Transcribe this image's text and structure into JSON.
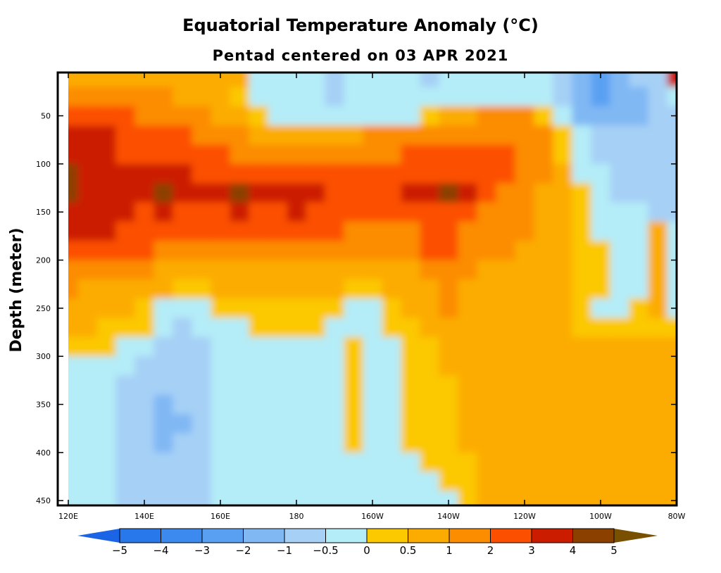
{
  "chart_data": {
    "type": "heatmap",
    "title": "Equatorial Temperature Anomaly (°C)",
    "subtitle": "Pentad centered on 03 APR 2021",
    "xlabel": "",
    "ylabel": "Depth (meter)",
    "x_ticks": [
      {
        "value": 120,
        "label": "120E"
      },
      {
        "value": 140,
        "label": "140E"
      },
      {
        "value": 160,
        "label": "160E"
      },
      {
        "value": 180,
        "label": "180"
      },
      {
        "value": 200,
        "label": "160W"
      },
      {
        "value": 220,
        "label": "140W"
      },
      {
        "value": 240,
        "label": "120W"
      },
      {
        "value": 260,
        "label": "100W"
      },
      {
        "value": 280,
        "label": "80W"
      }
    ],
    "y_ticks": [
      {
        "value": 50,
        "label": "50"
      },
      {
        "value": 100,
        "label": "100"
      },
      {
        "value": 150,
        "label": "150"
      },
      {
        "value": 200,
        "label": "200"
      },
      {
        "value": 250,
        "label": "250"
      },
      {
        "value": 300,
        "label": "300"
      },
      {
        "value": 350,
        "label": "350"
      },
      {
        "value": 400,
        "label": "400"
      },
      {
        "value": 450,
        "label": "450"
      }
    ],
    "xlim": [
      117,
      280
    ],
    "ylim": [
      5,
      455
    ],
    "colorbar": {
      "levels": [
        -5,
        -4,
        -3,
        -2,
        -1,
        -0.5,
        0,
        0.5,
        1,
        2,
        3,
        4,
        5
      ],
      "labels": [
        "−5",
        "−4",
        "−3",
        "−2",
        "−1",
        "−0.5",
        "0",
        "0.5",
        "1",
        "2",
        "3",
        "4",
        "5"
      ],
      "colors": [
        "#1c64e6",
        "#2878ec",
        "#3c8af0",
        "#5aa0f2",
        "#80b8f4",
        "#a6d0f6",
        "#b4ecf8",
        "#fcc800",
        "#fcac00",
        "#fc8c00",
        "#fc5000",
        "#cc1c00",
        "#8c4000",
        "#785000"
      ]
    },
    "anomaly_grid": {
      "depths": [
        10,
        30,
        50,
        70,
        90,
        110,
        130,
        150,
        170,
        190,
        210,
        230,
        250,
        270,
        290,
        310,
        330,
        350,
        370,
        390,
        410,
        430,
        450
      ],
      "longitudes": [
        120,
        125,
        130,
        135,
        140,
        145,
        150,
        155,
        160,
        165,
        170,
        175,
        180,
        185,
        190,
        195,
        200,
        205,
        210,
        215,
        220,
        225,
        230,
        235,
        240,
        245,
        250,
        255,
        260,
        265,
        270,
        275,
        280
      ],
      "rows": [
        [
          0.6,
          0.8,
          0.9,
          0.9,
          0.6,
          0.9,
          0.9,
          0.7,
          0.6,
          0.6,
          -0.2,
          -0.2,
          -0.2,
          -0.2,
          -0.6,
          -0.2,
          -0.2,
          -0.2,
          -0.3,
          -0.6,
          -0.3,
          -0.2,
          -0.3,
          -0.2,
          -0.2,
          -0.4,
          -0.8,
          -2.0,
          -2.5,
          -1.5,
          -1.0,
          -0.8,
          3.0
        ],
        [
          1.5,
          1.6,
          1.6,
          1.5,
          1.6,
          1.2,
          0.9,
          0.6,
          0.6,
          0.4,
          -0.1,
          -0.3,
          -0.3,
          -0.3,
          -0.8,
          -0.4,
          -0.3,
          -0.3,
          -0.3,
          -0.4,
          -0.4,
          -0.3,
          -0.2,
          -0.2,
          -0.2,
          -0.5,
          -1.0,
          -1.8,
          -2.2,
          -1.5,
          -1.2,
          -1.0,
          -0.5
        ],
        [
          2.5,
          2.5,
          2.4,
          2.0,
          1.8,
          1.6,
          1.3,
          1.0,
          0.8,
          0.6,
          0.3,
          -0.1,
          -0.2,
          -0.2,
          -0.3,
          -0.3,
          -0.2,
          -0.2,
          -0.1,
          0.2,
          0.5,
          0.7,
          1.0,
          1.0,
          1.0,
          0.2,
          -0.4,
          -1.2,
          -1.6,
          -1.2,
          -1.2,
          -1.0,
          -0.8
        ],
        [
          3.2,
          3.4,
          3.3,
          2.8,
          2.5,
          2.3,
          2.0,
          1.7,
          1.4,
          1.2,
          0.9,
          0.6,
          0.6,
          0.7,
          0.8,
          0.9,
          1.0,
          1.1,
          1.3,
          1.5,
          1.6,
          1.8,
          1.9,
          1.9,
          1.7,
          1.0,
          0.2,
          -0.4,
          -1.0,
          -0.9,
          -0.9,
          -0.8,
          -0.7
        ],
        [
          3.5,
          3.2,
          3.0,
          2.8,
          2.6,
          2.5,
          2.4,
          2.2,
          2.0,
          1.8,
          1.6,
          1.5,
          1.5,
          1.5,
          1.6,
          1.7,
          1.8,
          1.9,
          2.1,
          2.3,
          2.5,
          2.6,
          2.7,
          2.4,
          1.8,
          1.2,
          0.4,
          -0.2,
          -0.6,
          -0.7,
          -0.8,
          -0.8,
          -0.8
        ],
        [
          4.2,
          3.0,
          3.0,
          3.0,
          3.6,
          3.4,
          3.0,
          2.8,
          2.7,
          2.6,
          2.4,
          2.3,
          2.2,
          2.2,
          2.3,
          2.3,
          2.3,
          2.4,
          2.5,
          2.8,
          2.9,
          2.9,
          2.6,
          2.0,
          1.5,
          1.0,
          0.5,
          -0.1,
          -0.5,
          -0.6,
          -0.7,
          -0.8,
          -0.8
        ],
        [
          4.0,
          3.2,
          3.3,
          3.5,
          3.8,
          4.2,
          3.8,
          3.4,
          3.6,
          4.0,
          3.4,
          3.0,
          3.8,
          3.0,
          2.8,
          2.6,
          2.6,
          2.8,
          3.1,
          3.6,
          4.2,
          3.4,
          2.4,
          1.8,
          1.4,
          0.9,
          0.5,
          0.1,
          -0.4,
          -0.6,
          -0.6,
          -0.7,
          -0.7
        ],
        [
          3.4,
          3.3,
          3.2,
          3.0,
          2.9,
          3.0,
          2.8,
          2.7,
          2.9,
          3.0,
          2.8,
          2.8,
          3.0,
          2.7,
          2.5,
          2.3,
          2.2,
          2.2,
          2.5,
          2.6,
          2.8,
          2.4,
          1.8,
          1.4,
          1.1,
          0.8,
          0.5,
          0.2,
          -0.3,
          -0.5,
          -0.5,
          -0.6,
          -0.6
        ],
        [
          3.0,
          3.0,
          3.0,
          2.6,
          2.4,
          2.3,
          2.2,
          2.2,
          2.3,
          2.4,
          2.4,
          2.3,
          2.4,
          2.2,
          2.0,
          1.8,
          1.6,
          1.6,
          1.8,
          2.1,
          2.2,
          1.9,
          1.6,
          1.3,
          1.0,
          0.8,
          0.6,
          0.3,
          -0.2,
          -0.4,
          -0.4,
          0.6,
          -0.4
        ],
        [
          2.3,
          2.1,
          2.3,
          2.3,
          2.0,
          1.6,
          1.8,
          1.5,
          1.4,
          1.4,
          1.4,
          1.4,
          1.2,
          1.1,
          1.1,
          1.2,
          1.1,
          1.3,
          1.5,
          2.0,
          2.1,
          1.4,
          1.2,
          1.0,
          0.9,
          0.7,
          0.6,
          0.4,
          0.0,
          -0.3,
          -0.3,
          0.7,
          -0.3
        ],
        [
          1.6,
          1.4,
          1.3,
          1.3,
          1.2,
          0.9,
          0.8,
          0.8,
          0.8,
          0.8,
          0.9,
          0.8,
          0.9,
          0.8,
          0.7,
          0.6,
          0.8,
          0.7,
          0.7,
          1.1,
          1.4,
          1.0,
          0.8,
          0.7,
          0.7,
          0.6,
          0.5,
          0.4,
          0.1,
          -0.2,
          -0.2,
          0.8,
          -0.2
        ],
        [
          1.0,
          0.9,
          0.8,
          0.8,
          0.6,
          0.5,
          0.4,
          0.4,
          0.6,
          0.6,
          0.7,
          0.6,
          0.6,
          0.5,
          0.5,
          0.3,
          0.2,
          0.5,
          0.6,
          0.9,
          1.2,
          0.9,
          0.7,
          0.6,
          0.6,
          0.6,
          0.5,
          0.4,
          0.2,
          -0.1,
          -0.1,
          0.7,
          -0.1
        ],
        [
          0.6,
          0.6,
          0.6,
          0.5,
          0.2,
          -0.2,
          -0.3,
          -0.2,
          0.2,
          0.3,
          0.4,
          0.3,
          0.3,
          0.3,
          0.2,
          -0.2,
          -0.1,
          0.4,
          0.5,
          0.6,
          1.0,
          0.8,
          0.6,
          0.6,
          0.6,
          0.5,
          0.5,
          0.4,
          -0.1,
          -0.2,
          0.4,
          0.5,
          -0.1
        ],
        [
          0.5,
          0.5,
          0.3,
          0.2,
          0.0,
          -0.4,
          -0.6,
          -0.4,
          -0.2,
          -0.2,
          0.2,
          0.2,
          0.1,
          0.1,
          -0.2,
          -0.3,
          -0.2,
          0.2,
          0.4,
          0.5,
          0.7,
          0.6,
          0.5,
          0.5,
          0.5,
          0.5,
          0.5,
          0.4,
          0.3,
          0.3,
          0.3,
          0.4,
          0.3
        ],
        [
          0.2,
          0.2,
          0.1,
          -0.2,
          -0.2,
          -0.6,
          -0.8,
          -0.6,
          -0.3,
          -0.2,
          -0.2,
          -0.2,
          -0.2,
          -0.2,
          -0.3,
          0.2,
          -0.3,
          -0.2,
          0.2,
          0.4,
          0.5,
          0.5,
          0.5,
          0.5,
          0.5,
          0.5,
          0.5,
          0.5,
          0.5,
          0.5,
          0.5,
          0.5,
          0.5
        ],
        [
          -0.2,
          -0.2,
          -0.2,
          -0.4,
          -0.6,
          -0.7,
          -0.8,
          -0.6,
          -0.4,
          -0.3,
          -0.3,
          -0.3,
          -0.3,
          -0.3,
          -0.2,
          0.3,
          -0.3,
          -0.2,
          0.1,
          0.4,
          0.5,
          0.5,
          0.5,
          0.5,
          0.5,
          0.5,
          0.5,
          0.5,
          0.5,
          0.5,
          0.5,
          0.5,
          0.5
        ],
        [
          -0.2,
          -0.2,
          -0.3,
          -0.6,
          -0.8,
          -0.9,
          -0.9,
          -0.7,
          -0.4,
          -0.3,
          -0.3,
          -0.3,
          -0.3,
          -0.3,
          -0.2,
          0.3,
          -0.3,
          -0.2,
          0.1,
          0.3,
          0.4,
          0.5,
          0.5,
          0.5,
          0.5,
          0.5,
          0.5,
          0.5,
          0.5,
          0.5,
          0.5,
          0.5,
          0.5
        ],
        [
          -0.2,
          -0.2,
          -0.3,
          -0.7,
          -0.8,
          -1.2,
          -1.0,
          -0.7,
          -0.4,
          -0.3,
          -0.3,
          -0.3,
          -0.3,
          -0.3,
          -0.2,
          0.2,
          -0.3,
          -0.2,
          0.1,
          0.3,
          0.3,
          0.5,
          0.5,
          0.5,
          0.5,
          0.6,
          0.8,
          0.8,
          0.6,
          0.5,
          0.5,
          0.5,
          0.5
        ],
        [
          -0.2,
          -0.2,
          -0.3,
          -0.7,
          -0.8,
          -1.3,
          -1.1,
          -0.7,
          -0.4,
          -0.3,
          -0.3,
          -0.3,
          -0.3,
          -0.3,
          -0.2,
          0.2,
          -0.3,
          -0.2,
          0.1,
          0.3,
          0.4,
          0.5,
          0.5,
          0.5,
          0.5,
          0.6,
          0.9,
          0.9,
          0.6,
          0.5,
          0.5,
          0.5,
          0.5
        ],
        [
          -0.2,
          -0.2,
          -0.3,
          -0.7,
          -0.8,
          -1.2,
          -1.0,
          -0.7,
          -0.4,
          -0.3,
          -0.3,
          -0.3,
          -0.3,
          -0.3,
          -0.2,
          0.1,
          -0.3,
          -0.2,
          0.1,
          0.2,
          0.4,
          0.5,
          0.5,
          0.5,
          0.5,
          0.6,
          0.9,
          0.9,
          0.6,
          0.5,
          0.5,
          0.5,
          0.5
        ],
        [
          -0.2,
          -0.2,
          -0.3,
          -0.7,
          -0.8,
          -0.9,
          -0.9,
          -0.7,
          -0.4,
          -0.3,
          -0.3,
          -0.3,
          -0.3,
          -0.3,
          -0.2,
          -0.2,
          -0.3,
          -0.2,
          -0.1,
          0.1,
          0.3,
          0.3,
          0.5,
          0.5,
          0.5,
          0.6,
          0.9,
          0.9,
          0.6,
          0.5,
          0.5,
          0.5,
          0.5
        ],
        [
          -0.2,
          -0.2,
          -0.3,
          -0.7,
          -0.8,
          -0.8,
          -0.8,
          -0.7,
          -0.4,
          -0.3,
          -0.3,
          -0.3,
          -0.3,
          -0.3,
          -0.2,
          -0.2,
          -0.3,
          -0.2,
          -0.2,
          -0.2,
          0.2,
          0.3,
          0.5,
          0.5,
          0.5,
          0.6,
          0.9,
          0.9,
          0.6,
          0.5,
          0.5,
          0.5,
          0.5
        ],
        [
          -0.2,
          -0.2,
          -0.3,
          -0.7,
          -0.8,
          -0.8,
          -0.7,
          -0.6,
          -0.4,
          -0.3,
          -0.3,
          -0.3,
          -0.3,
          -0.3,
          -0.2,
          -0.2,
          -0.3,
          -0.2,
          -0.2,
          -0.2,
          -0.2,
          0.3,
          0.5,
          0.5,
          0.5,
          0.6,
          0.9,
          0.9,
          0.6,
          0.5,
          0.5,
          0.5,
          0.5
        ]
      ]
    }
  }
}
